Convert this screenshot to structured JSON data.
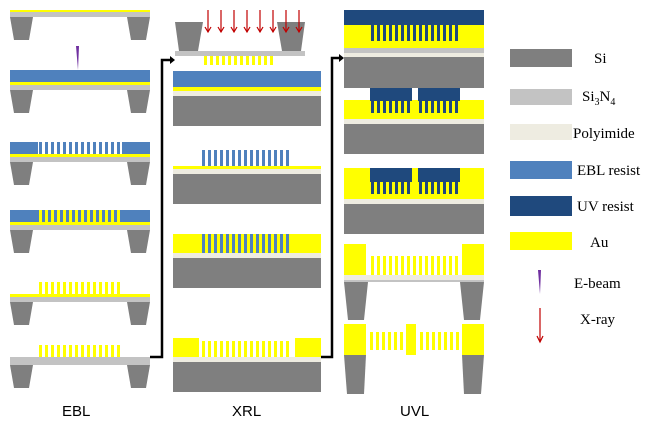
{
  "columns": [
    {
      "id": "ebl",
      "label": "EBL"
    },
    {
      "id": "xrl",
      "label": "XRL"
    },
    {
      "id": "uvl",
      "label": "UVL"
    }
  ],
  "legend": [
    {
      "id": "si",
      "label": "Si",
      "color": "#7f7f7f"
    },
    {
      "id": "si3n4",
      "label": "Si",
      "sub": "3",
      "mid": "N",
      "sub2": "4",
      "color": "#c3c3c3"
    },
    {
      "id": "polyimide",
      "label": "Polyimide",
      "color": "#eeece1"
    },
    {
      "id": "ebl-resist",
      "label": "EBL resist",
      "color": "#4f81bd"
    },
    {
      "id": "uv-resist",
      "label": "UV resist",
      "color": "#1f497d"
    },
    {
      "id": "au",
      "label": "Au",
      "color": "#ffff00"
    },
    {
      "id": "e-beam",
      "label": "E-beam",
      "color": "#7030a0",
      "icon": "e-beam-icon"
    },
    {
      "id": "x-ray",
      "label": "X-ray",
      "color": "#c00000",
      "icon": "x-ray-arrow-icon"
    }
  ]
}
